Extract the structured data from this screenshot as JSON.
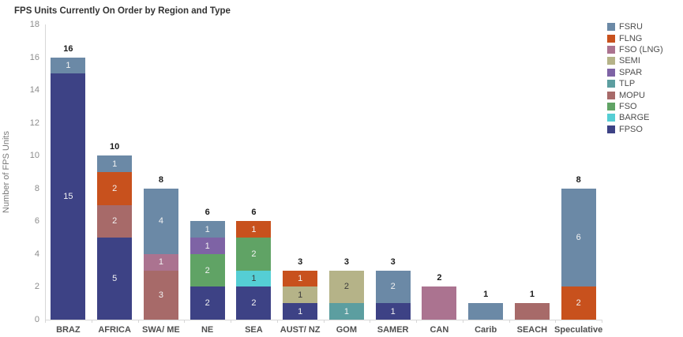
{
  "chart_data": {
    "type": "bar",
    "stacked": true,
    "title": "FPS Units Currently On Order by Region and Type",
    "xlabel": "",
    "ylabel": "Number of FPS Units",
    "ylim": [
      0,
      18
    ],
    "ytick_step": 2,
    "grid": false,
    "legend_position": "top-right",
    "categories": [
      "BRAZ",
      "AFRICA",
      "SWA/ ME",
      "NE",
      "SEA",
      "AUST/ NZ",
      "GOM",
      "SAMER",
      "CAN",
      "Carib",
      "SEACH",
      "Speculative"
    ],
    "totals": [
      16,
      10,
      8,
      6,
      6,
      3,
      3,
      3,
      2,
      1,
      1,
      8
    ],
    "series": [
      {
        "name": "FPSO",
        "color": "#3d4285",
        "dark_label": false,
        "values": [
          15,
          5,
          0,
          2,
          2,
          1,
          0,
          1,
          0,
          0,
          0,
          0
        ]
      },
      {
        "name": "BARGE",
        "color": "#55ced4",
        "dark_label": true,
        "values": [
          0,
          0,
          0,
          0,
          1,
          0,
          0,
          0,
          0,
          0,
          0,
          0
        ]
      },
      {
        "name": "FSO",
        "color": "#60a365",
        "dark_label": false,
        "values": [
          0,
          0,
          0,
          2,
          2,
          0,
          0,
          0,
          0,
          0,
          0,
          0
        ]
      },
      {
        "name": "MOPU",
        "color": "#a76a69",
        "dark_label": false,
        "values": [
          0,
          2,
          3,
          0,
          0,
          0,
          0,
          0,
          0,
          0,
          1,
          0
        ]
      },
      {
        "name": "TLP",
        "color": "#5c9ea0",
        "dark_label": false,
        "values": [
          0,
          0,
          0,
          0,
          0,
          0,
          1,
          0,
          0,
          0,
          0,
          0
        ]
      },
      {
        "name": "SPAR",
        "color": "#7e63a5",
        "dark_label": false,
        "values": [
          0,
          0,
          0,
          1,
          0,
          0,
          0,
          0,
          0,
          0,
          0,
          0
        ]
      },
      {
        "name": "SEMI",
        "color": "#b5b388",
        "dark_label": true,
        "values": [
          0,
          0,
          0,
          0,
          0,
          1,
          2,
          0,
          0,
          0,
          0,
          0
        ]
      },
      {
        "name": "FSO (LNG)",
        "color": "#ab7390",
        "dark_label": false,
        "values": [
          0,
          0,
          1,
          0,
          0,
          0,
          0,
          0,
          2,
          0,
          0,
          0
        ]
      },
      {
        "name": "FLNG",
        "color": "#c8511d",
        "dark_label": false,
        "values": [
          0,
          2,
          0,
          0,
          1,
          1,
          0,
          0,
          0,
          0,
          0,
          2
        ]
      },
      {
        "name": "FSRU",
        "color": "#6b89a6",
        "dark_label": false,
        "values": [
          1,
          1,
          4,
          1,
          0,
          0,
          0,
          2,
          0,
          1,
          0,
          6
        ]
      }
    ],
    "legend": [
      {
        "label": "FSRU",
        "color": "#6b89a6"
      },
      {
        "label": "FLNG",
        "color": "#c8511d"
      },
      {
        "label": "FSO (LNG)",
        "color": "#ab7390"
      },
      {
        "label": "SEMI",
        "color": "#b5b388"
      },
      {
        "label": "SPAR",
        "color": "#7e63a5"
      },
      {
        "label": "TLP",
        "color": "#5c9ea0"
      },
      {
        "label": "MOPU",
        "color": "#a76a69"
      },
      {
        "label": "FSO",
        "color": "#60a365"
      },
      {
        "label": "BARGE",
        "color": "#55ced4"
      },
      {
        "label": "FPSO",
        "color": "#3d4285"
      }
    ]
  }
}
